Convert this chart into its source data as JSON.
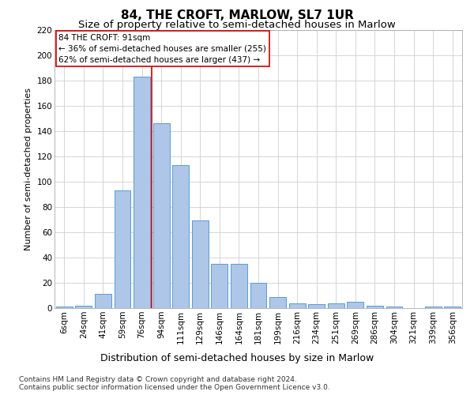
{
  "title": "84, THE CROFT, MARLOW, SL7 1UR",
  "subtitle": "Size of property relative to semi-detached houses in Marlow",
  "xlabel": "Distribution of semi-detached houses by size in Marlow",
  "ylabel": "Number of semi-detached properties",
  "categories": [
    "6sqm",
    "24sqm",
    "41sqm",
    "59sqm",
    "76sqm",
    "94sqm",
    "111sqm",
    "129sqm",
    "146sqm",
    "164sqm",
    "181sqm",
    "199sqm",
    "216sqm",
    "234sqm",
    "251sqm",
    "269sqm",
    "286sqm",
    "304sqm",
    "321sqm",
    "339sqm",
    "356sqm"
  ],
  "values": [
    1,
    2,
    11,
    93,
    183,
    146,
    113,
    69,
    35,
    35,
    20,
    9,
    4,
    3,
    4,
    5,
    2,
    1,
    0,
    1,
    1
  ],
  "bar_color": "#aec6e8",
  "bar_edge_color": "#5b9bd5",
  "vline_pos": 4.5,
  "vline_color": "#cc0000",
  "annotation_text": "84 THE CROFT: 91sqm\n← 36% of semi-detached houses are smaller (255)\n62% of semi-detached houses are larger (437) →",
  "annotation_box_color": "#ffffff",
  "annotation_box_edge": "#cc0000",
  "ylim": [
    0,
    220
  ],
  "yticks": [
    0,
    20,
    40,
    60,
    80,
    100,
    120,
    140,
    160,
    180,
    200,
    220
  ],
  "footer1": "Contains HM Land Registry data © Crown copyright and database right 2024.",
  "footer2": "Contains public sector information licensed under the Open Government Licence v3.0.",
  "title_fontsize": 11,
  "subtitle_fontsize": 9.5,
  "xlabel_fontsize": 9,
  "ylabel_fontsize": 8,
  "tick_fontsize": 7.5,
  "annotation_fontsize": 7.5,
  "footer_fontsize": 6.5,
  "background_color": "#ffffff",
  "grid_color": "#d0d0d0"
}
